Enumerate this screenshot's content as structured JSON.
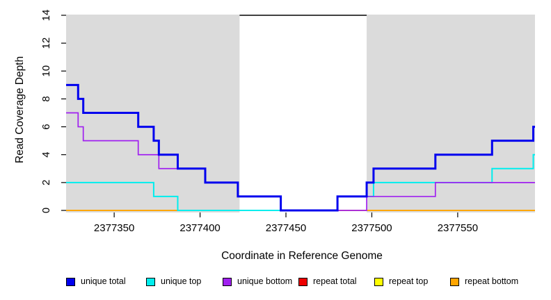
{
  "figure": {
    "background": "#FFFFFF",
    "masked_region_color": "#DBDBDB",
    "axis_color": "#000000"
  },
  "chart_data": {
    "type": "line",
    "subtype": "step",
    "title": "",
    "xlabel": "Coordinate in Reference Genome",
    "ylabel": "Read Coverage Depth",
    "xlim": [
      2377322,
      2377595
    ],
    "ylim": [
      0,
      14
    ],
    "xticks": [
      2377350,
      2377400,
      2377450,
      2377500,
      2377550
    ],
    "yticks": [
      0,
      2,
      4,
      6,
      8,
      10,
      12,
      14
    ],
    "grid": false,
    "legend_position": "bottom",
    "shaded_regions": [
      {
        "name": "masked-region-left",
        "x0": 2377322,
        "x1": 2377423,
        "color": "#DBDBDB"
      },
      {
        "name": "masked-region-right",
        "x0": 2377497,
        "x1": 2377595,
        "color": "#DBDBDB"
      }
    ],
    "annotation_segment": {
      "x0": 2377423,
      "x1": 2377497,
      "y": 14,
      "color": "#000000"
    },
    "series": [
      {
        "name": "repeat total",
        "color": "#EE0000",
        "line_width": 1.5,
        "points": [
          [
            2377322,
            0
          ]
        ]
      },
      {
        "name": "repeat top",
        "color": "#FFFF00",
        "line_width": 1.5,
        "points": [
          [
            2377322,
            0
          ]
        ]
      },
      {
        "name": "repeat bottom",
        "color": "#FFA500",
        "line_width": 1.7,
        "points": [
          [
            2377322,
            0
          ]
        ]
      },
      {
        "name": "unique top",
        "color": "#00EEEE",
        "line_width": 2,
        "points": [
          [
            2377322,
            2
          ],
          [
            2377373,
            1
          ],
          [
            2377387,
            0
          ],
          [
            2377480,
            1
          ],
          [
            2377501,
            2
          ],
          [
            2377570,
            3
          ],
          [
            2377594,
            4
          ]
        ]
      },
      {
        "name": "unique bottom",
        "color": "#A020F0",
        "line_width": 1.7,
        "points": [
          [
            2377322,
            7
          ],
          [
            2377329,
            6
          ],
          [
            2377332,
            5
          ],
          [
            2377364,
            4
          ],
          [
            2377376,
            3
          ],
          [
            2377403,
            2
          ],
          [
            2377422,
            1
          ],
          [
            2377447,
            0
          ],
          [
            2377497,
            1
          ],
          [
            2377537,
            2
          ]
        ]
      },
      {
        "name": "unique total",
        "color": "#0000EE",
        "line_width": 3,
        "points": [
          [
            2377322,
            9
          ],
          [
            2377329,
            8
          ],
          [
            2377332,
            7
          ],
          [
            2377364,
            6
          ],
          [
            2377373,
            5
          ],
          [
            2377376,
            4
          ],
          [
            2377387,
            3
          ],
          [
            2377403,
            2
          ],
          [
            2377422,
            1
          ],
          [
            2377447,
            0
          ],
          [
            2377480,
            1
          ],
          [
            2377497,
            2
          ],
          [
            2377501,
            3
          ],
          [
            2377537,
            4
          ],
          [
            2377570,
            5
          ],
          [
            2377594,
            6
          ]
        ]
      }
    ],
    "legend": [
      {
        "label": "unique total",
        "color": "#0000EE"
      },
      {
        "label": "unique top",
        "color": "#00EEEE"
      },
      {
        "label": "unique bottom",
        "color": "#A020F0"
      },
      {
        "label": "repeat total",
        "color": "#EE0000"
      },
      {
        "label": "repeat top",
        "color": "#FFFF00"
      },
      {
        "label": "repeat bottom",
        "color": "#FFA500"
      }
    ]
  }
}
